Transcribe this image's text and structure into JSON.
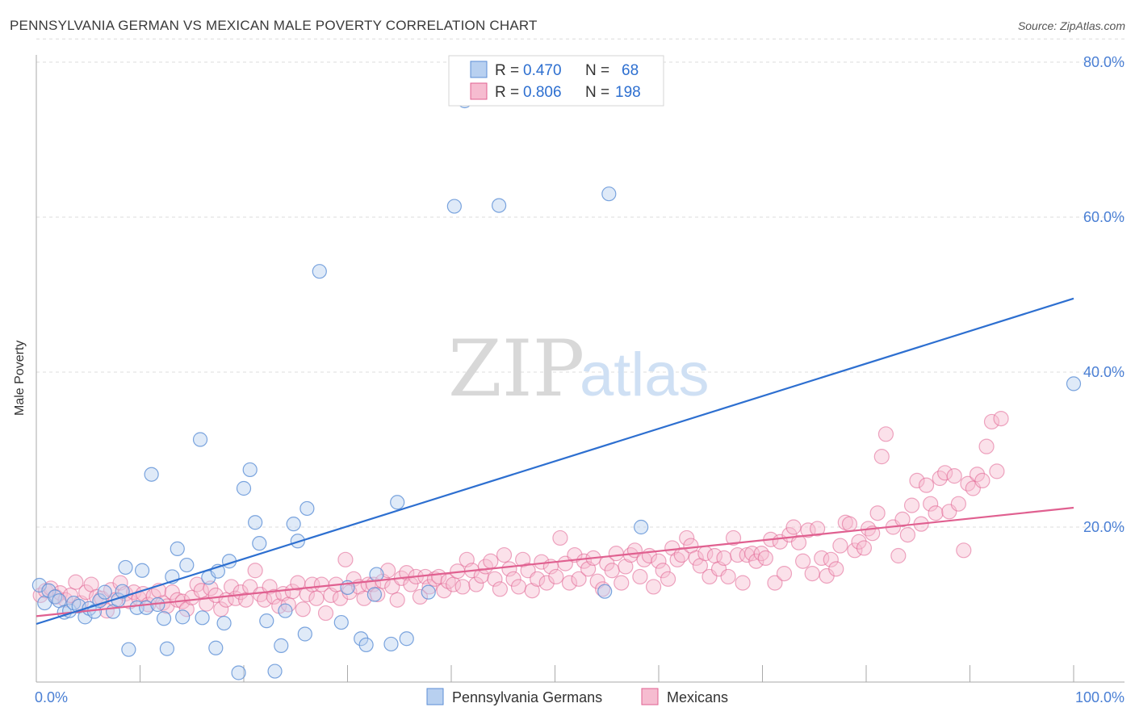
{
  "header": {
    "title": "PENNSYLVANIA GERMAN VS MEXICAN MALE POVERTY CORRELATION CHART",
    "source": "Source: ZipAtlas.com"
  },
  "colors": {
    "blue": "#5b8ed6",
    "blue_fill": "#b8d0f0",
    "pink": "#e06090",
    "pink_fill": "#f6bcd0",
    "blue_line": "#2d6fd0",
    "pink_line": "#e06090",
    "tick_text": "#4a7fd4"
  },
  "legend": {
    "rows": [
      {
        "r_label": "R = ",
        "r_value": "0.470",
        "n_label": "N = ",
        "n_value": "68"
      },
      {
        "r_label": "R = ",
        "r_value": "0.806",
        "n_label": "N = ",
        "n_value": "198"
      }
    ]
  },
  "watermark": {
    "zip": "ZIP",
    "atlas": "atlas"
  },
  "chart_data": {
    "type": "scatter",
    "title": "PENNSYLVANIA GERMAN VS MEXICAN MALE POVERTY CORRELATION CHART",
    "ylabel": "Male Poverty",
    "xlabel": "",
    "xlim": [
      0,
      100
    ],
    "ylim": [
      0,
      83
    ],
    "x_tick_labels": [
      "0.0%",
      "100.0%"
    ],
    "y_ticks": [
      20,
      40,
      60,
      80
    ],
    "y_tick_labels": [
      "20.0%",
      "40.0%",
      "60.0%",
      "80.0%"
    ],
    "grid": true,
    "legend_position": "top-center",
    "series": [
      {
        "name": "Pennsylvania Germans",
        "r": 0.47,
        "n": 68,
        "trend": {
          "x": [
            0,
            100
          ],
          "y": [
            7.5,
            49.5
          ]
        },
        "points": [
          [
            0.3,
            12.5
          ],
          [
            0.8,
            10.2
          ],
          [
            1.2,
            11.8
          ],
          [
            1.8,
            11.0
          ],
          [
            2.2,
            10.5
          ],
          [
            2.7,
            9.0
          ],
          [
            3.2,
            9.2
          ],
          [
            3.6,
            10.2
          ],
          [
            4.1,
            9.8
          ],
          [
            4.7,
            8.4
          ],
          [
            5.1,
            9.5
          ],
          [
            5.6,
            9.1
          ],
          [
            6.1,
            10.5
          ],
          [
            6.6,
            11.6
          ],
          [
            7.4,
            9.1
          ],
          [
            7.9,
            10.6
          ],
          [
            8.3,
            11.7
          ],
          [
            8.6,
            14.8
          ],
          [
            8.9,
            4.2
          ],
          [
            9.7,
            9.6
          ],
          [
            10.2,
            14.4
          ],
          [
            10.6,
            9.6
          ],
          [
            11.1,
            26.8
          ],
          [
            11.7,
            10.0
          ],
          [
            12.3,
            8.2
          ],
          [
            12.6,
            4.3
          ],
          [
            13.1,
            13.6
          ],
          [
            13.6,
            17.2
          ],
          [
            14.1,
            8.4
          ],
          [
            14.5,
            15.1
          ],
          [
            15.8,
            31.3
          ],
          [
            16.0,
            8.3
          ],
          [
            16.6,
            13.5
          ],
          [
            17.3,
            4.4
          ],
          [
            17.5,
            14.3
          ],
          [
            18.1,
            7.6
          ],
          [
            18.6,
            15.6
          ],
          [
            19.5,
            1.2
          ],
          [
            20.0,
            25.0
          ],
          [
            20.6,
            27.4
          ],
          [
            21.1,
            20.6
          ],
          [
            21.5,
            17.9
          ],
          [
            22.2,
            7.9
          ],
          [
            23.0,
            1.4
          ],
          [
            23.6,
            4.7
          ],
          [
            24.0,
            9.2
          ],
          [
            24.8,
            20.4
          ],
          [
            25.2,
            18.2
          ],
          [
            25.9,
            6.2
          ],
          [
            26.1,
            22.4
          ],
          [
            27.3,
            53.0
          ],
          [
            29.4,
            7.7
          ],
          [
            30.0,
            12.2
          ],
          [
            31.3,
            5.6
          ],
          [
            31.8,
            4.8
          ],
          [
            32.6,
            11.3
          ],
          [
            32.8,
            13.9
          ],
          [
            34.2,
            4.9
          ],
          [
            34.8,
            23.2
          ],
          [
            35.7,
            5.6
          ],
          [
            37.8,
            11.6
          ],
          [
            40.3,
            61.4
          ],
          [
            41.3,
            75.0
          ],
          [
            44.6,
            61.5
          ],
          [
            54.8,
            11.7
          ],
          [
            55.2,
            63.0
          ],
          [
            58.3,
            20.0
          ],
          [
            100.0,
            38.5
          ]
        ]
      },
      {
        "name": "Mexicans",
        "r": 0.806,
        "n": 198,
        "trend": {
          "x": [
            0,
            100
          ],
          "y": [
            8.5,
            22.5
          ]
        },
        "points": [
          [
            0.4,
            11.2
          ],
          [
            0.9,
            11.8
          ],
          [
            1.4,
            12.1
          ],
          [
            1.9,
            11.0
          ],
          [
            2.3,
            11.5
          ],
          [
            2.8,
            10.6
          ],
          [
            3.3,
            11.2
          ],
          [
            3.8,
            12.9
          ],
          [
            4.3,
            10.2
          ],
          [
            4.8,
            11.6
          ],
          [
            5.3,
            12.6
          ],
          [
            5.8,
            11.0
          ],
          [
            6.3,
            10.8
          ],
          [
            6.8,
            9.2
          ],
          [
            7.2,
            11.9
          ],
          [
            7.6,
            10.6
          ],
          [
            8.1,
            12.8
          ],
          [
            8.6,
            11.4
          ],
          [
            9.0,
            10.4
          ],
          [
            9.4,
            11.6
          ],
          [
            9.9,
            10.8
          ],
          [
            10.3,
            11.4
          ],
          [
            10.8,
            10.0
          ],
          [
            11.3,
            11.1
          ],
          [
            11.8,
            11.8
          ],
          [
            12.2,
            10.2
          ],
          [
            12.6,
            9.8
          ],
          [
            13.1,
            11.6
          ],
          [
            13.6,
            10.6
          ],
          [
            14.1,
            10.4
          ],
          [
            14.5,
            9.4
          ],
          [
            15.0,
            10.9
          ],
          [
            15.5,
            12.6
          ],
          [
            15.9,
            11.8
          ],
          [
            16.4,
            10.1
          ],
          [
            16.8,
            12.1
          ],
          [
            17.3,
            11.2
          ],
          [
            17.8,
            9.4
          ],
          [
            18.3,
            10.6
          ],
          [
            18.8,
            12.3
          ],
          [
            19.2,
            10.8
          ],
          [
            19.7,
            11.6
          ],
          [
            20.2,
            10.6
          ],
          [
            20.6,
            12.3
          ],
          [
            21.1,
            14.4
          ],
          [
            21.6,
            11.3
          ],
          [
            22.0,
            10.6
          ],
          [
            22.5,
            12.3
          ],
          [
            22.9,
            11.0
          ],
          [
            23.4,
            9.8
          ],
          [
            23.8,
            11.4
          ],
          [
            24.3,
            10.0
          ],
          [
            24.7,
            11.7
          ],
          [
            25.2,
            12.8
          ],
          [
            25.7,
            9.4
          ],
          [
            26.1,
            11.3
          ],
          [
            26.6,
            12.6
          ],
          [
            27.0,
            10.8
          ],
          [
            27.5,
            12.6
          ],
          [
            27.9,
            8.9
          ],
          [
            28.4,
            11.2
          ],
          [
            28.9,
            12.6
          ],
          [
            29.3,
            10.8
          ],
          [
            29.8,
            15.8
          ],
          [
            30.2,
            11.6
          ],
          [
            30.6,
            13.3
          ],
          [
            31.1,
            12.3
          ],
          [
            31.6,
            10.8
          ],
          [
            32.0,
            12.6
          ],
          [
            32.5,
            12.6
          ],
          [
            32.9,
            11.3
          ],
          [
            33.4,
            13.0
          ],
          [
            33.9,
            14.4
          ],
          [
            34.3,
            12.3
          ],
          [
            34.8,
            10.6
          ],
          [
            35.2,
            13.4
          ],
          [
            35.7,
            14.1
          ],
          [
            36.1,
            12.6
          ],
          [
            36.6,
            13.6
          ],
          [
            37.0,
            11.0
          ],
          [
            37.5,
            13.6
          ],
          [
            37.9,
            12.3
          ],
          [
            38.4,
            13.3
          ],
          [
            38.8,
            13.6
          ],
          [
            39.3,
            11.8
          ],
          [
            39.7,
            13.0
          ],
          [
            40.2,
            12.6
          ],
          [
            40.6,
            14.3
          ],
          [
            41.1,
            12.3
          ],
          [
            41.5,
            15.8
          ],
          [
            42.0,
            14.4
          ],
          [
            42.4,
            12.6
          ],
          [
            42.9,
            13.7
          ],
          [
            43.3,
            14.9
          ],
          [
            43.8,
            15.6
          ],
          [
            44.2,
            13.3
          ],
          [
            44.7,
            12.0
          ],
          [
            45.1,
            16.4
          ],
          [
            45.6,
            14.6
          ],
          [
            46.0,
            13.3
          ],
          [
            46.5,
            12.3
          ],
          [
            46.9,
            15.8
          ],
          [
            47.4,
            14.4
          ],
          [
            47.8,
            11.8
          ],
          [
            48.3,
            13.3
          ],
          [
            48.7,
            15.5
          ],
          [
            49.2,
            12.8
          ],
          [
            49.6,
            14.9
          ],
          [
            50.1,
            13.6
          ],
          [
            50.5,
            18.6
          ],
          [
            51.0,
            15.3
          ],
          [
            51.4,
            12.8
          ],
          [
            51.9,
            16.4
          ],
          [
            52.3,
            13.3
          ],
          [
            52.8,
            15.6
          ],
          [
            53.2,
            14.6
          ],
          [
            53.7,
            16.0
          ],
          [
            54.1,
            13.0
          ],
          [
            54.6,
            12.0
          ],
          [
            55.0,
            15.3
          ],
          [
            55.5,
            14.4
          ],
          [
            55.9,
            16.6
          ],
          [
            56.4,
            12.8
          ],
          [
            56.8,
            14.9
          ],
          [
            57.3,
            16.4
          ],
          [
            57.7,
            17.0
          ],
          [
            58.2,
            13.6
          ],
          [
            58.6,
            15.8
          ],
          [
            59.1,
            16.3
          ],
          [
            59.5,
            12.3
          ],
          [
            60.0,
            15.6
          ],
          [
            60.4,
            14.4
          ],
          [
            60.9,
            13.3
          ],
          [
            61.3,
            17.3
          ],
          [
            61.8,
            15.8
          ],
          [
            62.2,
            16.4
          ],
          [
            62.7,
            18.6
          ],
          [
            63.1,
            17.6
          ],
          [
            63.6,
            16.0
          ],
          [
            64.0,
            15.0
          ],
          [
            64.5,
            16.6
          ],
          [
            64.9,
            13.6
          ],
          [
            65.4,
            16.3
          ],
          [
            65.8,
            14.6
          ],
          [
            66.3,
            16.0
          ],
          [
            66.7,
            13.6
          ],
          [
            67.2,
            18.6
          ],
          [
            67.6,
            16.4
          ],
          [
            68.1,
            12.8
          ],
          [
            68.5,
            16.4
          ],
          [
            69.0,
            16.6
          ],
          [
            69.4,
            15.6
          ],
          [
            69.9,
            16.6
          ],
          [
            70.3,
            16.0
          ],
          [
            70.8,
            18.4
          ],
          [
            71.2,
            12.8
          ],
          [
            71.7,
            18.1
          ],
          [
            72.1,
            14.0
          ],
          [
            72.6,
            19.0
          ],
          [
            73.0,
            20.0
          ],
          [
            73.5,
            18.0
          ],
          [
            73.9,
            15.6
          ],
          [
            74.4,
            19.6
          ],
          [
            74.8,
            14.0
          ],
          [
            75.3,
            19.8
          ],
          [
            75.7,
            16.0
          ],
          [
            76.2,
            13.7
          ],
          [
            76.6,
            15.8
          ],
          [
            77.1,
            14.6
          ],
          [
            77.5,
            17.6
          ],
          [
            78.0,
            20.6
          ],
          [
            78.4,
            20.4
          ],
          [
            78.9,
            17.0
          ],
          [
            79.3,
            18.1
          ],
          [
            79.8,
            17.3
          ],
          [
            80.2,
            19.8
          ],
          [
            80.6,
            19.2
          ],
          [
            81.1,
            21.8
          ],
          [
            81.5,
            29.1
          ],
          [
            81.9,
            32.0
          ],
          [
            82.6,
            20.0
          ],
          [
            83.1,
            16.3
          ],
          [
            83.5,
            21.0
          ],
          [
            84.0,
            19.0
          ],
          [
            84.4,
            22.8
          ],
          [
            84.9,
            26.0
          ],
          [
            85.3,
            20.4
          ],
          [
            85.8,
            25.4
          ],
          [
            86.2,
            23.0
          ],
          [
            86.7,
            21.8
          ],
          [
            87.1,
            26.3
          ],
          [
            87.6,
            27.0
          ],
          [
            88.0,
            22.0
          ],
          [
            88.5,
            26.6
          ],
          [
            88.9,
            23.0
          ],
          [
            89.4,
            17.0
          ],
          [
            89.8,
            25.6
          ],
          [
            90.3,
            25.0
          ],
          [
            90.7,
            26.8
          ],
          [
            91.2,
            26.0
          ],
          [
            91.6,
            30.4
          ],
          [
            92.1,
            33.6
          ],
          [
            92.6,
            27.2
          ],
          [
            93.0,
            34.0
          ]
        ]
      }
    ]
  }
}
